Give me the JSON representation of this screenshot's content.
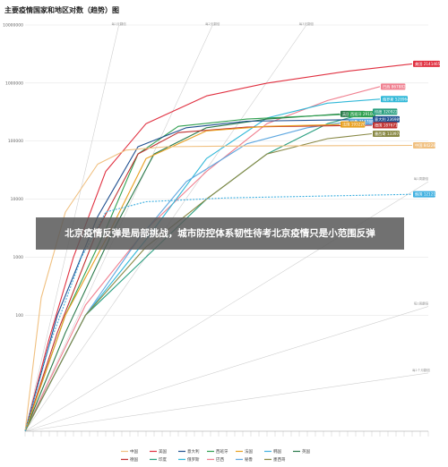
{
  "headline": "北京疫情反弹是局部挑战，城市防控体系韧性待考北京疫情只是小范围反弹",
  "chart_data": {
    "type": "line",
    "title": "主要疫情国家和地区对数（趋势）图",
    "yscale": "log",
    "ylim": [
      1,
      10000000
    ],
    "yticks": [
      "10000000",
      "1000000",
      "100000",
      "10000",
      "1000",
      "100"
    ],
    "x_days": [
      0,
      100
    ],
    "guide_labels": [
      "每1天翻倍",
      "每2天翻倍",
      "每3天翻倍",
      "每1周翻倍",
      "每2周翻倍",
      "每1个月翻倍"
    ],
    "legend": [
      "中国",
      "美国",
      "意大利",
      "西班牙",
      "法国",
      "韩国",
      "英国",
      "德国",
      "印度",
      "俄罗斯",
      "巴西",
      "秘鲁",
      "墨西哥"
    ],
    "series": [
      {
        "name": "美国",
        "color": "#e03040",
        "end_label": "美国 2141465",
        "values": [
          [
            0,
            1
          ],
          [
            6,
            40
          ],
          [
            12,
            1000
          ],
          [
            20,
            30000
          ],
          [
            30,
            200000
          ],
          [
            45,
            600000
          ],
          [
            60,
            1000000
          ],
          [
            80,
            1600000
          ],
          [
            96,
            2141465
          ]
        ]
      },
      {
        "name": "巴西",
        "color": "#f08090",
        "end_label": "巴西 867882",
        "values": [
          [
            0,
            1
          ],
          [
            15,
            150
          ],
          [
            30,
            3000
          ],
          [
            45,
            30000
          ],
          [
            60,
            200000
          ],
          [
            75,
            500000
          ],
          [
            88,
            867882
          ]
        ]
      },
      {
        "name": "俄罗斯",
        "color": "#30b8d8",
        "end_label": "俄罗斯 528964",
        "values": [
          [
            0,
            1
          ],
          [
            15,
            100
          ],
          [
            30,
            2000
          ],
          [
            45,
            50000
          ],
          [
            60,
            250000
          ],
          [
            75,
            450000
          ],
          [
            88,
            528964
          ]
        ]
      },
      {
        "name": "英国",
        "color": "#2a7a4a",
        "end_label": "英国 293239",
        "values": [
          [
            0,
            1
          ],
          [
            10,
            50
          ],
          [
            22,
            3000
          ],
          [
            32,
            60000
          ],
          [
            45,
            170000
          ],
          [
            60,
            240000
          ],
          [
            78,
            293239
          ]
        ]
      },
      {
        "name": "西班牙",
        "color": "#30a050",
        "end_label": "西班牙 291008",
        "values": [
          [
            0,
            1
          ],
          [
            10,
            100
          ],
          [
            20,
            3000
          ],
          [
            28,
            60000
          ],
          [
            38,
            180000
          ],
          [
            55,
            240000
          ],
          [
            80,
            291008
          ]
        ]
      },
      {
        "name": "印度",
        "color": "#2a9f80",
        "end_label": "印度 320922",
        "values": [
          [
            0,
            1
          ],
          [
            15,
            100
          ],
          [
            30,
            1000
          ],
          [
            45,
            10000
          ],
          [
            60,
            60000
          ],
          [
            75,
            200000
          ],
          [
            86,
            320922
          ]
        ]
      },
      {
        "name": "意大利",
        "color": "#1f4f8f",
        "end_label": "意大利 236989",
        "values": [
          [
            0,
            1
          ],
          [
            8,
            100
          ],
          [
            18,
            5000
          ],
          [
            28,
            80000
          ],
          [
            40,
            170000
          ],
          [
            55,
            220000
          ],
          [
            86,
            236989
          ]
        ]
      },
      {
        "name": "秘鲁",
        "color": "#5fa8e0",
        "end_label": "秘鲁 214788",
        "values": [
          [
            0,
            1
          ],
          [
            15,
            100
          ],
          [
            28,
            2000
          ],
          [
            40,
            20000
          ],
          [
            55,
            90000
          ],
          [
            70,
            170000
          ],
          [
            80,
            214788
          ]
        ]
      },
      {
        "name": "德国",
        "color": "#c03030",
        "end_label": "德国 187671",
        "values": [
          [
            0,
            1
          ],
          [
            8,
            50
          ],
          [
            18,
            3000
          ],
          [
            28,
            60000
          ],
          [
            38,
            140000
          ],
          [
            55,
            175000
          ],
          [
            86,
            187671
          ]
        ]
      },
      {
        "name": "法国",
        "color": "#e8a020",
        "end_label": "法国 193220",
        "values": [
          [
            0,
            1
          ],
          [
            10,
            100
          ],
          [
            20,
            2000
          ],
          [
            30,
            50000
          ],
          [
            45,
            150000
          ],
          [
            60,
            180000
          ],
          [
            78,
            193220
          ]
        ]
      },
      {
        "name": "墨西哥",
        "color": "#888844",
        "end_label": "墨西哥 133974",
        "values": [
          [
            0,
            1
          ],
          [
            15,
            100
          ],
          [
            30,
            1500
          ],
          [
            45,
            10000
          ],
          [
            60,
            60000
          ],
          [
            75,
            110000
          ],
          [
            86,
            133974
          ]
        ]
      },
      {
        "name": "中国",
        "color": "#f0c080",
        "end_label": "中国 84228",
        "values": [
          [
            0,
            1
          ],
          [
            4,
            200
          ],
          [
            10,
            6000
          ],
          [
            18,
            40000
          ],
          [
            25,
            70000
          ],
          [
            35,
            80000
          ],
          [
            50,
            82000
          ],
          [
            96,
            84228
          ]
        ]
      },
      {
        "name": "韩国",
        "color": "#40b0e0",
        "end_label": "韩国 12121",
        "dashed": true,
        "values": [
          [
            0,
            1
          ],
          [
            6,
            30
          ],
          [
            14,
            1000
          ],
          [
            20,
            6000
          ],
          [
            30,
            9000
          ],
          [
            50,
            10500
          ],
          [
            96,
            12121
          ]
        ]
      }
    ]
  }
}
